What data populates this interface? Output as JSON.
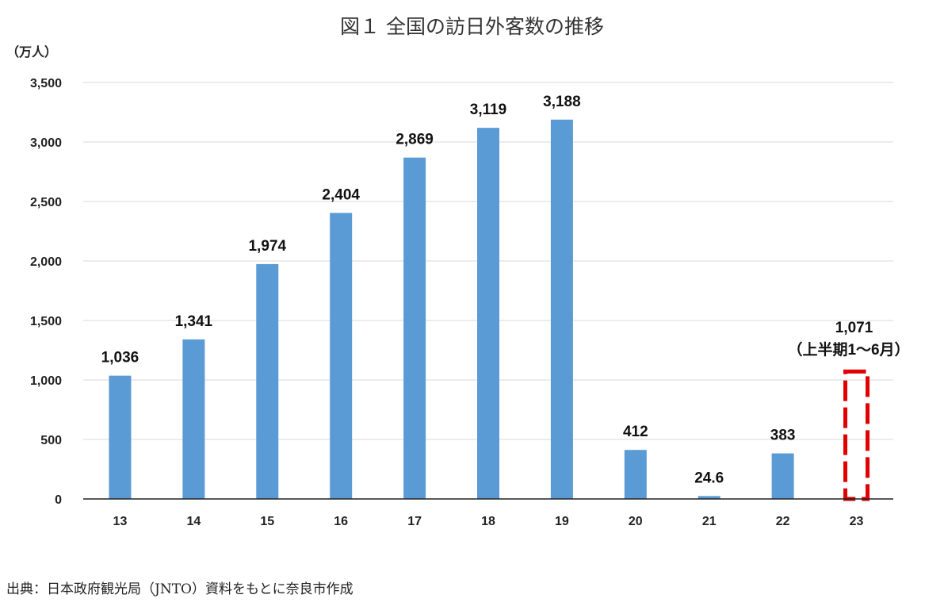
{
  "chart_data": {
    "type": "bar",
    "title": "図１ 全国の訪日外客数の推移",
    "ylabel": "（万人）",
    "xlabel": "",
    "categories": [
      "13",
      "14",
      "15",
      "16",
      "17",
      "18",
      "19",
      "20",
      "21",
      "22",
      "23"
    ],
    "values": [
      1036,
      1341,
      1974,
      2404,
      2869,
      3119,
      3188,
      412,
      24.6,
      383,
      1071
    ],
    "value_labels": [
      "1,036",
      "1,341",
      "1,974",
      "2,404",
      "2,869",
      "3,119",
      "3,188",
      "412",
      "24.6",
      "383",
      "1,071"
    ],
    "ylim": [
      0,
      3500
    ],
    "yticks": [
      0,
      500,
      1000,
      1500,
      2000,
      2500,
      3000,
      3500
    ],
    "ytick_labels": [
      "0",
      "500",
      "1,000",
      "1,500",
      "2,000",
      "2,500",
      "3,000",
      "3,500"
    ],
    "grid": true,
    "bar_color": "#5b9bd5",
    "highlight": {
      "category": "23",
      "annotation": "（上半期1～6月）",
      "style": "dashed-outline",
      "color": "#e00000"
    }
  },
  "source": "出典：日本政府観光局（JNTO）資料をもとに奈良市作成"
}
